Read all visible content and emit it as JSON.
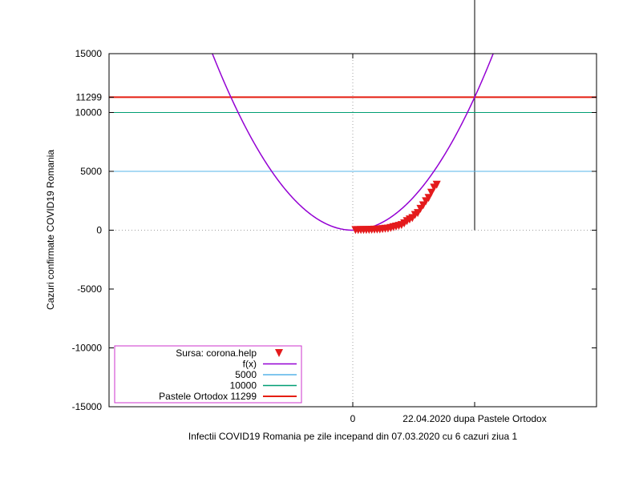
{
  "chart_data": {
    "type": "line",
    "xlabel": "Infectii COVID19 Romania pe zile incepand din 07.03.2020 cu 6 cazuri ziua 1",
    "ylabel": "Cazuri confirmate COVID19 Romania",
    "ylim": [
      -15000,
      15000
    ],
    "xlim": [
      -45,
      45
    ],
    "y_ticks": [
      {
        "value": 15000,
        "label": "15000"
      },
      {
        "value": 11299,
        "label": "11299"
      },
      {
        "value": 10000,
        "label": "10000"
      },
      {
        "value": 5000,
        "label": "5000"
      },
      {
        "value": 0,
        "label": "0"
      },
      {
        "value": -5000,
        "label": "-5000"
      },
      {
        "value": -10000,
        "label": "-10000"
      },
      {
        "value": -15000,
        "label": "-15000"
      }
    ],
    "x_ticks": [
      {
        "value": 0,
        "label": "0"
      },
      {
        "value": 45,
        "label": "22.04.2020 dupa Pastele Ortodox"
      }
    ],
    "vertical_line_x": 45,
    "grid": "dotted at labeled ticks",
    "legend_position": "bottom-left",
    "series": [
      {
        "name": "Sursa: corona.help",
        "kind": "points",
        "marker": "down-triangle",
        "color": "#e41a1c",
        "x": [
          1,
          2,
          3,
          4,
          5,
          6,
          7,
          8,
          9,
          10,
          11,
          12,
          13,
          14,
          15,
          16,
          17,
          18,
          19,
          20,
          21,
          22,
          23,
          24,
          25,
          26,
          27,
          28,
          29,
          30,
          31
        ],
        "y": [
          6,
          9,
          13,
          15,
          16,
          25,
          31,
          45,
          49,
          60,
          90,
          115,
          139,
          184,
          259,
          308,
          367,
          433,
          576,
          762,
          906,
          1029,
          1292,
          1452,
          1815,
          2109,
          2460,
          2738,
          3183,
          3613,
          3864
        ]
      },
      {
        "name": "f(x)",
        "kind": "curve",
        "color": "#9400d3",
        "coefficients": {
          "a": 5.58,
          "b": 0,
          "c": 0
        }
      },
      {
        "name": "5000",
        "kind": "hline",
        "value": 5000,
        "color": "#56b4e9"
      },
      {
        "name": "10000",
        "kind": "hline",
        "value": 10000,
        "color": "#009e73"
      },
      {
        "name": "Pastele Ortodox 11299",
        "kind": "hline",
        "value": 11299,
        "color": "#e51e10"
      }
    ]
  }
}
